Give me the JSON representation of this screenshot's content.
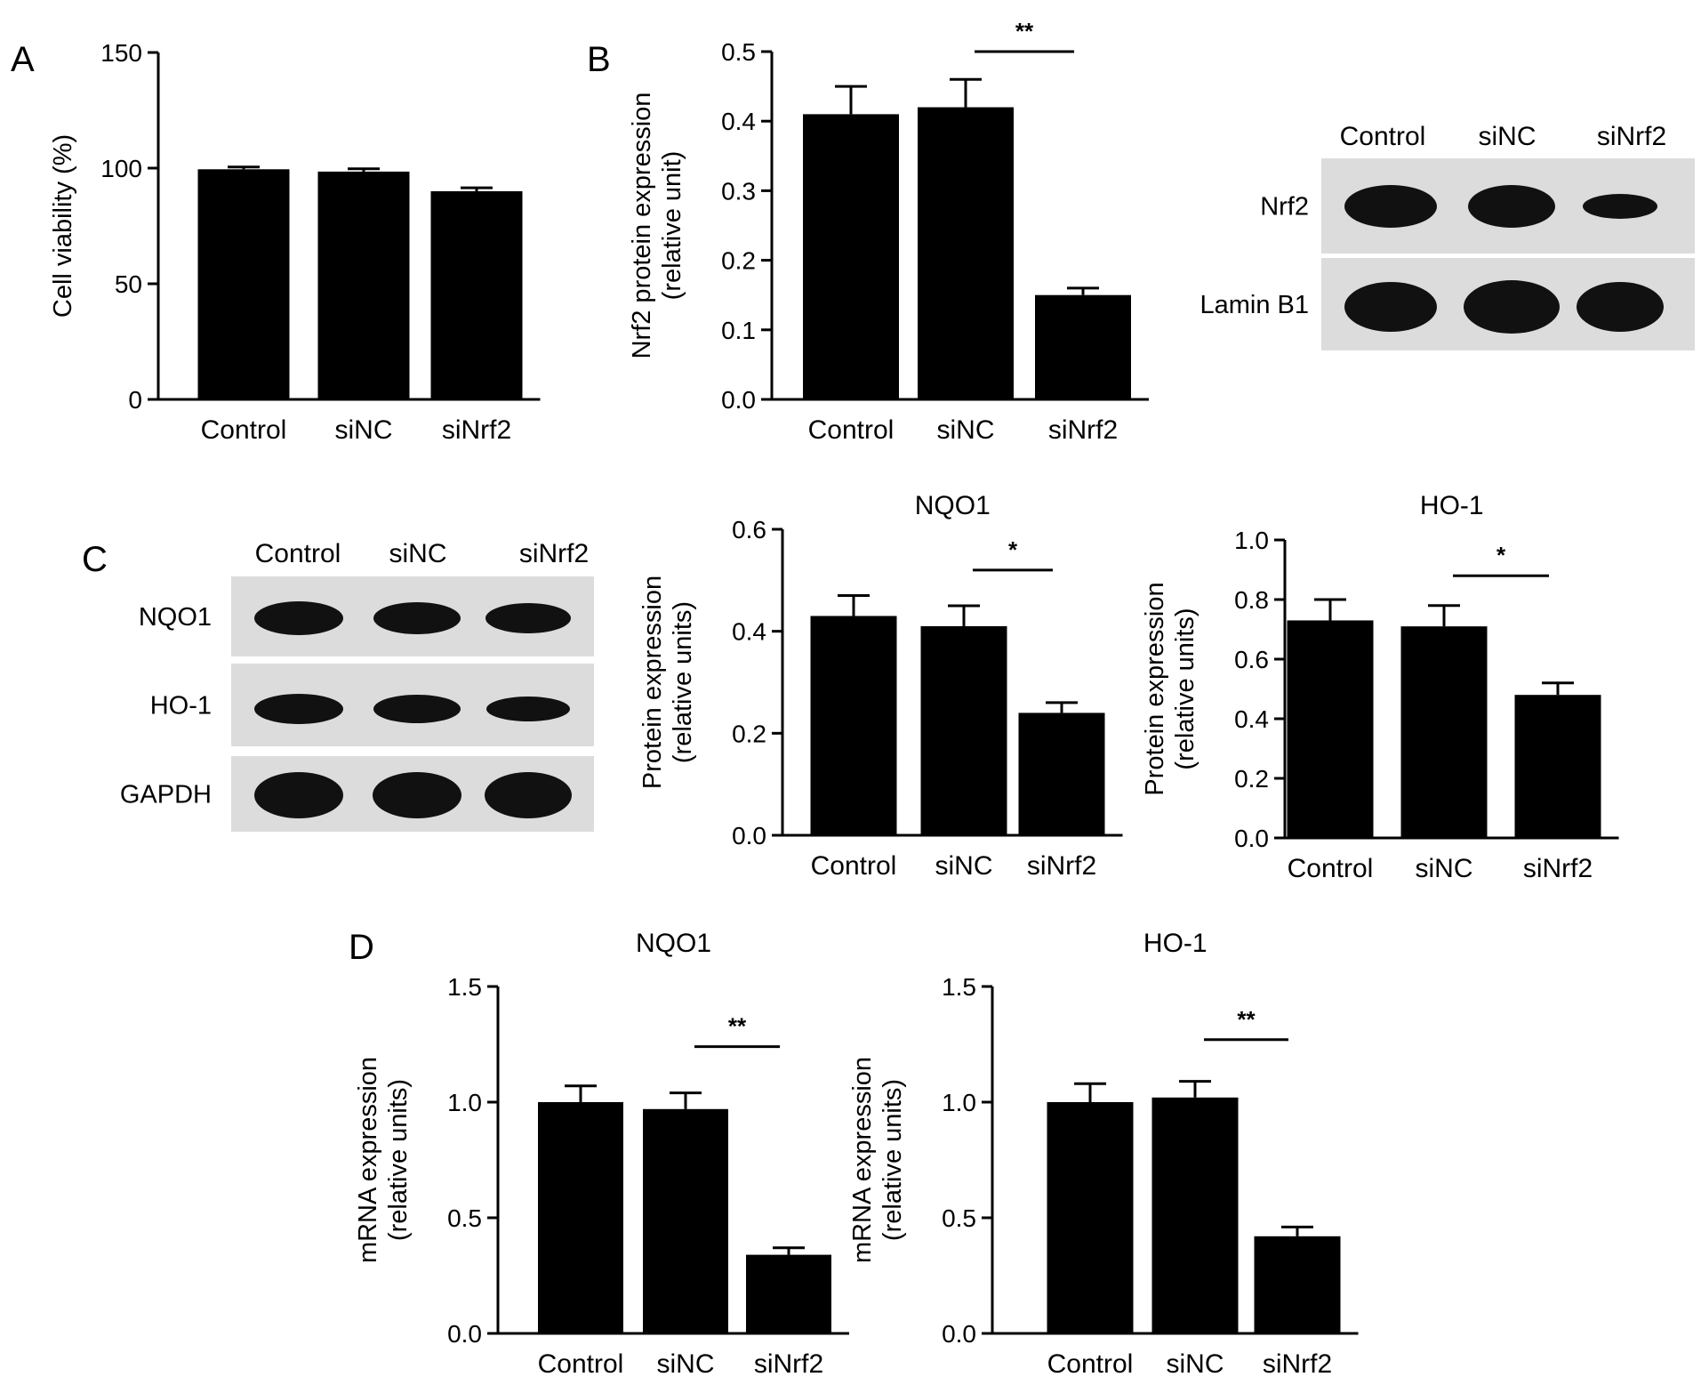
{
  "chart_data": [
    {
      "id": "A",
      "type": "bar",
      "panel_letter": "A",
      "title": "",
      "ylabel": "Cell viability (%)",
      "ylabel_lines": [
        "Cell viability (%)"
      ],
      "categories": [
        "Control",
        "siNC",
        "siNrf2"
      ],
      "values": [
        99.5,
        98.5,
        90.0
      ],
      "errors": [
        1.0,
        1.2,
        1.5
      ],
      "ylim": [
        0,
        150
      ],
      "yticks": [
        "0",
        "50",
        "100",
        "150"
      ],
      "significance": []
    },
    {
      "id": "B",
      "type": "bar",
      "panel_letter": "B",
      "title": "",
      "ylabel": "Nrf2 protein expression (relative unit)",
      "ylabel_lines": [
        "Nrf2 protein expression",
        "(relative unit)"
      ],
      "categories": [
        "Control",
        "siNC",
        "siNrf2"
      ],
      "values": [
        0.41,
        0.42,
        0.15
      ],
      "errors": [
        0.04,
        0.04,
        0.01
      ],
      "ylim": [
        0,
        0.5
      ],
      "yticks": [
        "0.0",
        "0.1",
        "0.2",
        "0.3",
        "0.4",
        "0.5"
      ],
      "significance": [
        {
          "from": 1,
          "to": 2,
          "label": "**",
          "y": 0.5
        }
      ]
    },
    {
      "id": "C1",
      "type": "bar",
      "panel_letter": "",
      "title": "NQO1",
      "ylabel": "Protein expression (relative units)",
      "ylabel_lines": [
        "Protein expression",
        "(relative units)"
      ],
      "categories": [
        "Control",
        "siNC",
        "siNrf2"
      ],
      "values": [
        0.43,
        0.41,
        0.24
      ],
      "errors": [
        0.04,
        0.04,
        0.02
      ],
      "ylim": [
        0,
        0.6
      ],
      "yticks": [
        "0.0",
        "0.2",
        "0.4",
        "0.6"
      ],
      "significance": [
        {
          "from": 1,
          "to": 2,
          "label": "*",
          "y": 0.52
        }
      ]
    },
    {
      "id": "C2",
      "type": "bar",
      "panel_letter": "",
      "title": "HO-1",
      "ylabel": "Protein expression (relative units)",
      "ylabel_lines": [
        "Protein expression",
        "(relative units)"
      ],
      "categories": [
        "Control",
        "siNC",
        "siNrf2"
      ],
      "values": [
        0.73,
        0.71,
        0.48
      ],
      "errors": [
        0.07,
        0.07,
        0.04
      ],
      "ylim": [
        0,
        1.0
      ],
      "yticks": [
        "0.0",
        "0.2",
        "0.4",
        "0.6",
        "0.8",
        "1.0"
      ],
      "significance": [
        {
          "from": 1,
          "to": 2,
          "label": "*",
          "y": 0.88
        }
      ]
    },
    {
      "id": "D1",
      "type": "bar",
      "panel_letter": "D",
      "title": "NQO1",
      "ylabel": "mRNA expression (relative units)",
      "ylabel_lines": [
        "mRNA expression",
        "(relative units)"
      ],
      "categories": [
        "Control",
        "siNC",
        "siNrf2"
      ],
      "values": [
        1.0,
        0.97,
        0.34
      ],
      "errors": [
        0.07,
        0.07,
        0.03
      ],
      "ylim": [
        0,
        1.5
      ],
      "yticks": [
        "0.0",
        "0.5",
        "1.0",
        "1.5"
      ],
      "significance": [
        {
          "from": 1,
          "to": 2,
          "label": "**",
          "y": 1.24
        }
      ]
    },
    {
      "id": "D2",
      "type": "bar",
      "panel_letter": "",
      "title": "HO-1",
      "ylabel": "mRNA expression (relative units)",
      "ylabel_lines": [
        "mRNA expression",
        "(relative units)"
      ],
      "categories": [
        "Control",
        "siNC",
        "siNrf2"
      ],
      "values": [
        1.0,
        1.02,
        0.42
      ],
      "errors": [
        0.08,
        0.07,
        0.04
      ],
      "ylim": [
        0,
        1.5
      ],
      "yticks": [
        "0.0",
        "0.5",
        "1.0",
        "1.5"
      ],
      "significance": [
        {
          "from": 1,
          "to": 2,
          "label": "**",
          "y": 1.27
        }
      ]
    }
  ],
  "blots": [
    {
      "id": "blotB",
      "columns": [
        "Control",
        "siNC",
        "siNrf2"
      ],
      "rows": [
        "Nrf2",
        "Lamin B1"
      ]
    },
    {
      "id": "blotC",
      "panel_letter": "C",
      "columns": [
        "Control",
        "siNC",
        "siNrf2"
      ],
      "rows": [
        "NQO1",
        "HO-1",
        "GAPDH"
      ]
    }
  ]
}
